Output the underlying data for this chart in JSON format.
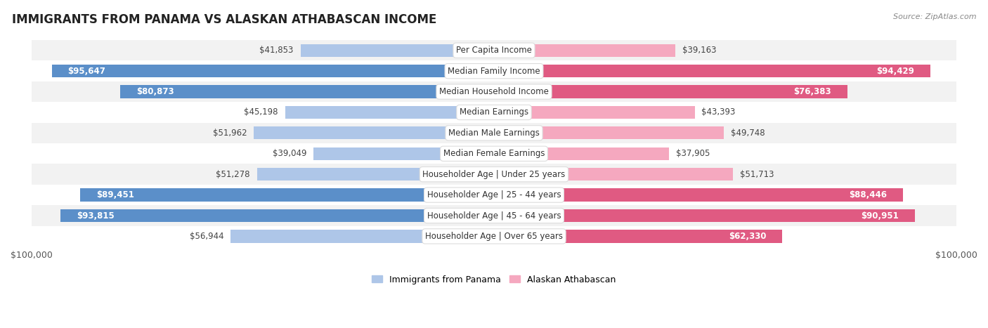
{
  "title": "IMMIGRANTS FROM PANAMA VS ALASKAN ATHABASCAN INCOME",
  "source": "Source: ZipAtlas.com",
  "categories": [
    "Per Capita Income",
    "Median Family Income",
    "Median Household Income",
    "Median Earnings",
    "Median Male Earnings",
    "Median Female Earnings",
    "Householder Age | Under 25 years",
    "Householder Age | 25 - 44 years",
    "Householder Age | 45 - 64 years",
    "Householder Age | Over 65 years"
  ],
  "panama_values": [
    41853,
    95647,
    80873,
    45198,
    51962,
    39049,
    51278,
    89451,
    93815,
    56944
  ],
  "athabascan_values": [
    39163,
    94429,
    76383,
    43393,
    49748,
    37905,
    51713,
    88446,
    90951,
    62330
  ],
  "panama_labels": [
    "$41,853",
    "$95,647",
    "$80,873",
    "$45,198",
    "$51,962",
    "$39,049",
    "$51,278",
    "$89,451",
    "$93,815",
    "$56,944"
  ],
  "athabascan_labels": [
    "$39,163",
    "$94,429",
    "$76,383",
    "$43,393",
    "$49,748",
    "$37,905",
    "$51,713",
    "$88,446",
    "$90,951",
    "$62,330"
  ],
  "max_value": 100000,
  "panama_color_light": "#aec6e8",
  "panama_color_dark": "#5b8fc9",
  "athabascan_color_light": "#f5a8bf",
  "athabascan_color_dark": "#e05a82",
  "bar_height": 0.62,
  "row_bg_light": "#f2f2f2",
  "row_bg_white": "#ffffff",
  "legend_panama_color": "#aec6e8",
  "legend_athabascan_color": "#f5a8bf",
  "inside_label_threshold": 62000,
  "label_fontsize": 8.5,
  "title_fontsize": 12,
  "source_fontsize": 8
}
